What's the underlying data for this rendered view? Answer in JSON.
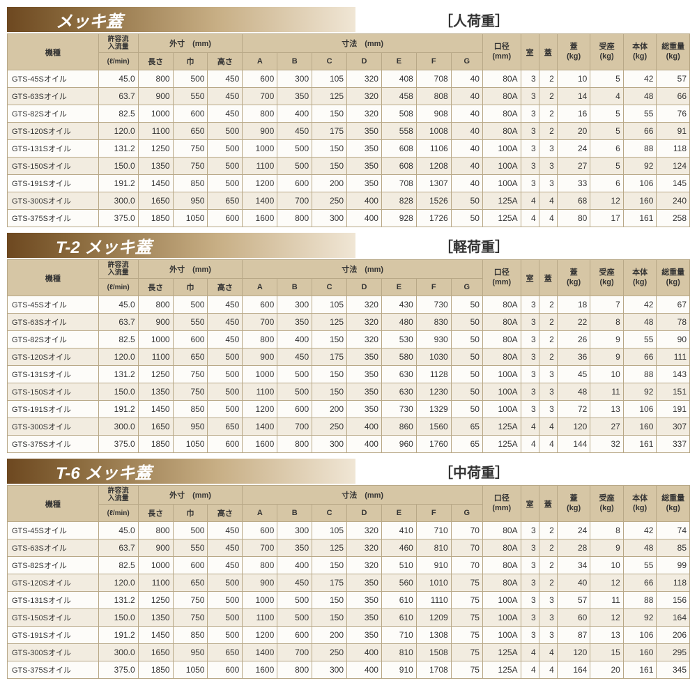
{
  "headers": {
    "model": "機種",
    "flow": "許容流\n入流量",
    "flow_unit": "(ℓ/min)",
    "outer": "外寸　(mm)",
    "length": "長さ",
    "width": "巾",
    "height": "高さ",
    "dims": "寸法　(mm)",
    "A": "A",
    "B": "B",
    "C": "C",
    "D": "D",
    "E": "E",
    "F": "F",
    "G": "G",
    "dia": "口径\n(mm)",
    "room": "室",
    "lid": "蓋",
    "lid_w": "蓋\n(kg)",
    "seat_w": "受座\n(kg)",
    "body_w": "本体\n(kg)",
    "total_w": "総重量\n(kg)"
  },
  "sections": [
    {
      "title": "メッキ蓋",
      "load": "［人荷重］",
      "rows": [
        [
          "GTS-45Sオイル",
          "45.0",
          "800",
          "500",
          "450",
          "600",
          "300",
          "105",
          "320",
          "408",
          "708",
          "40",
          "80A",
          "3",
          "2",
          "10",
          "5",
          "42",
          "57"
        ],
        [
          "GTS-63Sオイル",
          "63.7",
          "900",
          "550",
          "450",
          "700",
          "350",
          "125",
          "320",
          "458",
          "808",
          "40",
          "80A",
          "3",
          "2",
          "14",
          "4",
          "48",
          "66"
        ],
        [
          "GTS-82Sオイル",
          "82.5",
          "1000",
          "600",
          "450",
          "800",
          "400",
          "150",
          "320",
          "508",
          "908",
          "40",
          "80A",
          "3",
          "2",
          "16",
          "5",
          "55",
          "76"
        ],
        [
          "GTS-120Sオイル",
          "120.0",
          "1100",
          "650",
          "500",
          "900",
          "450",
          "175",
          "350",
          "558",
          "1008",
          "40",
          "80A",
          "3",
          "2",
          "20",
          "5",
          "66",
          "91"
        ],
        [
          "GTS-131Sオイル",
          "131.2",
          "1250",
          "750",
          "500",
          "1000",
          "500",
          "150",
          "350",
          "608",
          "1106",
          "40",
          "100A",
          "3",
          "3",
          "24",
          "6",
          "88",
          "118"
        ],
        [
          "GTS-150Sオイル",
          "150.0",
          "1350",
          "750",
          "500",
          "1100",
          "500",
          "150",
          "350",
          "608",
          "1208",
          "40",
          "100A",
          "3",
          "3",
          "27",
          "5",
          "92",
          "124"
        ],
        [
          "GTS-191Sオイル",
          "191.2",
          "1450",
          "850",
          "500",
          "1200",
          "600",
          "200",
          "350",
          "708",
          "1307",
          "40",
          "100A",
          "3",
          "3",
          "33",
          "6",
          "106",
          "145"
        ],
        [
          "GTS-300Sオイル",
          "300.0",
          "1650",
          "950",
          "650",
          "1400",
          "700",
          "250",
          "400",
          "828",
          "1526",
          "50",
          "125A",
          "4",
          "4",
          "68",
          "12",
          "160",
          "240"
        ],
        [
          "GTS-375Sオイル",
          "375.0",
          "1850",
          "1050",
          "600",
          "1600",
          "800",
          "300",
          "400",
          "928",
          "1726",
          "50",
          "125A",
          "4",
          "4",
          "80",
          "17",
          "161",
          "258"
        ]
      ]
    },
    {
      "title": "T-2 メッキ蓋",
      "load": "［軽荷重］",
      "rows": [
        [
          "GTS-45Sオイル",
          "45.0",
          "800",
          "500",
          "450",
          "600",
          "300",
          "105",
          "320",
          "430",
          "730",
          "50",
          "80A",
          "3",
          "2",
          "18",
          "7",
          "42",
          "67"
        ],
        [
          "GTS-63Sオイル",
          "63.7",
          "900",
          "550",
          "450",
          "700",
          "350",
          "125",
          "320",
          "480",
          "830",
          "50",
          "80A",
          "3",
          "2",
          "22",
          "8",
          "48",
          "78"
        ],
        [
          "GTS-82Sオイル",
          "82.5",
          "1000",
          "600",
          "450",
          "800",
          "400",
          "150",
          "320",
          "530",
          "930",
          "50",
          "80A",
          "3",
          "2",
          "26",
          "9",
          "55",
          "90"
        ],
        [
          "GTS-120Sオイル",
          "120.0",
          "1100",
          "650",
          "500",
          "900",
          "450",
          "175",
          "350",
          "580",
          "1030",
          "50",
          "80A",
          "3",
          "2",
          "36",
          "9",
          "66",
          "111"
        ],
        [
          "GTS-131Sオイル",
          "131.2",
          "1250",
          "750",
          "500",
          "1000",
          "500",
          "150",
          "350",
          "630",
          "1128",
          "50",
          "100A",
          "3",
          "3",
          "45",
          "10",
          "88",
          "143"
        ],
        [
          "GTS-150Sオイル",
          "150.0",
          "1350",
          "750",
          "500",
          "1100",
          "500",
          "150",
          "350",
          "630",
          "1230",
          "50",
          "100A",
          "3",
          "3",
          "48",
          "11",
          "92",
          "151"
        ],
        [
          "GTS-191Sオイル",
          "191.2",
          "1450",
          "850",
          "500",
          "1200",
          "600",
          "200",
          "350",
          "730",
          "1329",
          "50",
          "100A",
          "3",
          "3",
          "72",
          "13",
          "106",
          "191"
        ],
        [
          "GTS-300Sオイル",
          "300.0",
          "1650",
          "950",
          "650",
          "1400",
          "700",
          "250",
          "400",
          "860",
          "1560",
          "65",
          "125A",
          "4",
          "4",
          "120",
          "27",
          "160",
          "307"
        ],
        [
          "GTS-375Sオイル",
          "375.0",
          "1850",
          "1050",
          "600",
          "1600",
          "800",
          "300",
          "400",
          "960",
          "1760",
          "65",
          "125A",
          "4",
          "4",
          "144",
          "32",
          "161",
          "337"
        ]
      ]
    },
    {
      "title": "T-6 メッキ蓋",
      "load": "［中荷重］",
      "rows": [
        [
          "GTS-45Sオイル",
          "45.0",
          "800",
          "500",
          "450",
          "600",
          "300",
          "105",
          "320",
          "410",
          "710",
          "70",
          "80A",
          "3",
          "2",
          "24",
          "8",
          "42",
          "74"
        ],
        [
          "GTS-63Sオイル",
          "63.7",
          "900",
          "550",
          "450",
          "700",
          "350",
          "125",
          "320",
          "460",
          "810",
          "70",
          "80A",
          "3",
          "2",
          "28",
          "9",
          "48",
          "85"
        ],
        [
          "GTS-82Sオイル",
          "82.5",
          "1000",
          "600",
          "450",
          "800",
          "400",
          "150",
          "320",
          "510",
          "910",
          "70",
          "80A",
          "3",
          "2",
          "34",
          "10",
          "55",
          "99"
        ],
        [
          "GTS-120Sオイル",
          "120.0",
          "1100",
          "650",
          "500",
          "900",
          "450",
          "175",
          "350",
          "560",
          "1010",
          "75",
          "80A",
          "3",
          "2",
          "40",
          "12",
          "66",
          "118"
        ],
        [
          "GTS-131Sオイル",
          "131.2",
          "1250",
          "750",
          "500",
          "1000",
          "500",
          "150",
          "350",
          "610",
          "1110",
          "75",
          "100A",
          "3",
          "3",
          "57",
          "11",
          "88",
          "156"
        ],
        [
          "GTS-150Sオイル",
          "150.0",
          "1350",
          "750",
          "500",
          "1100",
          "500",
          "150",
          "350",
          "610",
          "1209",
          "75",
          "100A",
          "3",
          "3",
          "60",
          "12",
          "92",
          "164"
        ],
        [
          "GTS-191Sオイル",
          "191.2",
          "1450",
          "850",
          "500",
          "1200",
          "600",
          "200",
          "350",
          "710",
          "1308",
          "75",
          "100A",
          "3",
          "3",
          "87",
          "13",
          "106",
          "206"
        ],
        [
          "GTS-300Sオイル",
          "300.0",
          "1650",
          "950",
          "650",
          "1400",
          "700",
          "250",
          "400",
          "810",
          "1508",
          "75",
          "125A",
          "4",
          "4",
          "120",
          "15",
          "160",
          "295"
        ],
        [
          "GTS-375Sオイル",
          "375.0",
          "1850",
          "1050",
          "600",
          "1600",
          "800",
          "300",
          "400",
          "910",
          "1708",
          "75",
          "125A",
          "4",
          "4",
          "164",
          "20",
          "161",
          "345"
        ]
      ]
    }
  ]
}
